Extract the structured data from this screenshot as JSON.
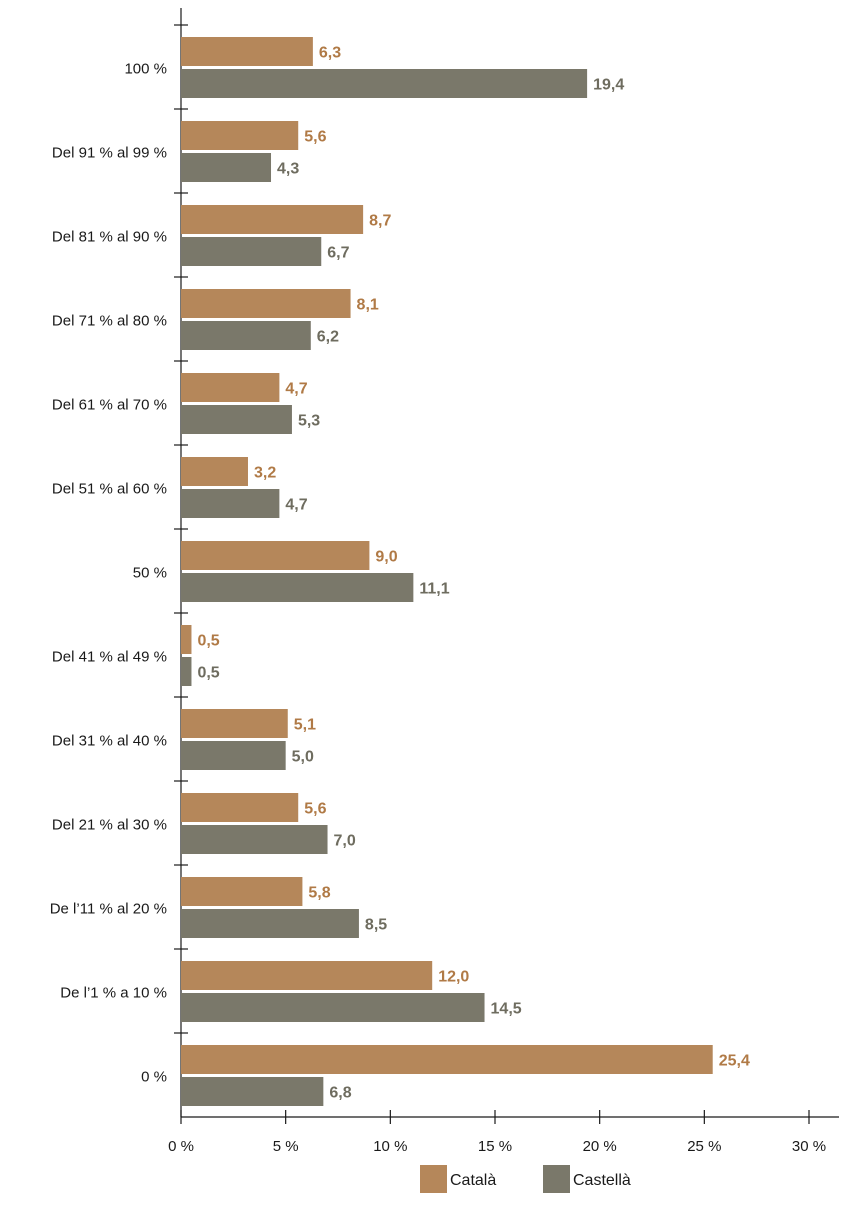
{
  "chart_data": {
    "type": "bar",
    "orientation": "horizontal",
    "categories": [
      "100 %",
      "Del 91 % al 99 %",
      "Del 81 % al 90 %",
      "Del 71 % al 80 %",
      "Del 61 % al 70 %",
      "Del 51 % al 60 %",
      "50 %",
      "Del 41 % al 49 %",
      "Del 31 % al 40 %",
      "Del 21 % al 30 %",
      "De l’11 % al 20 %",
      "De l’1 % a 10 %",
      "0 %"
    ],
    "series": [
      {
        "name": "Català",
        "color": "#b5875a",
        "label_color": "#b07a46",
        "values": [
          6.3,
          5.6,
          8.7,
          8.1,
          4.7,
          3.2,
          9.0,
          0.5,
          5.1,
          5.6,
          5.8,
          12.0,
          25.4
        ],
        "labels": [
          "6,3",
          "5,6",
          "8,7",
          "8,1",
          "4,7",
          "3,2",
          "9,0",
          "0,5",
          "5,1",
          "5,6",
          "5,8",
          "12,0",
          "25,4"
        ]
      },
      {
        "name": "Castellà",
        "color": "#7a786a",
        "label_color": "#6e6c5f",
        "values": [
          19.4,
          4.3,
          6.7,
          6.2,
          5.3,
          4.7,
          11.1,
          0.5,
          5.0,
          7.0,
          8.5,
          14.5,
          6.8
        ],
        "labels": [
          "19,4",
          "4,3",
          "6,7",
          "6,2",
          "5,3",
          "4,7",
          "11,1",
          "0,5",
          "5,0",
          "7,0",
          "8,5",
          "14,5",
          "6,8"
        ]
      }
    ],
    "xlim": [
      0,
      30
    ],
    "xticks": [
      0,
      5,
      10,
      15,
      20,
      25,
      30
    ],
    "xtick_labels": [
      "0 %",
      "5 %",
      "10 %",
      "15 %",
      "20 %",
      "25 %",
      "30 %"
    ],
    "grid": false,
    "legend_position": "bottom-center"
  }
}
